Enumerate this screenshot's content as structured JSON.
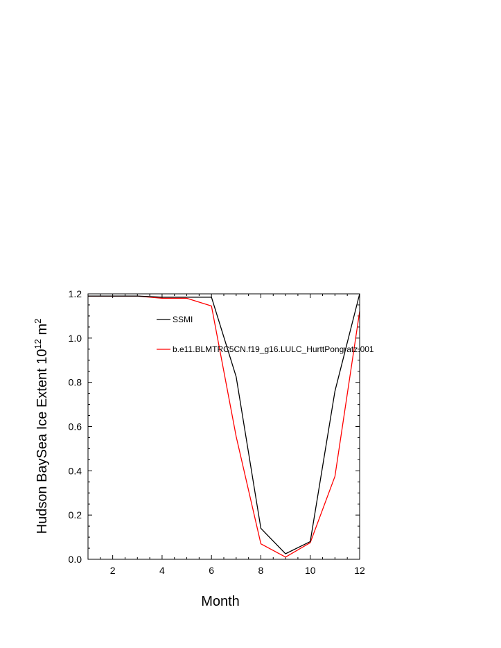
{
  "chart_data": {
    "type": "line",
    "xlabel": "Month",
    "ylabel": {
      "main": "Hudson BaySea Ice Extent 10",
      "sup": "12",
      "unit": " m",
      "unit_sup": "2"
    },
    "xlim": [
      1,
      12
    ],
    "ylim": [
      0.0,
      1.2
    ],
    "x_ticks": [
      "2",
      "4",
      "6",
      "8",
      "10",
      "12"
    ],
    "y_ticks": [
      "0.0",
      "0.2",
      "0.4",
      "0.6",
      "0.8",
      "1.0",
      "1.2"
    ],
    "grid": false,
    "legend_position": "top-center inside plot",
    "x": [
      1,
      2,
      3,
      4,
      5,
      6,
      7,
      8,
      9,
      10,
      11,
      12
    ],
    "series": [
      {
        "name": "SSMI",
        "color": "#000000",
        "values": [
          1.19,
          1.19,
          1.19,
          1.185,
          1.185,
          1.185,
          0.825,
          0.14,
          0.025,
          0.08,
          0.76,
          1.2
        ]
      },
      {
        "name": "b.e11.BLMTRC5CN.f19_g16.LULC_HurttPongratz.001",
        "color": "#ff0000",
        "values": [
          1.19,
          1.19,
          1.19,
          1.18,
          1.18,
          1.145,
          0.555,
          0.07,
          0.01,
          0.075,
          0.375,
          1.12
        ]
      }
    ]
  }
}
